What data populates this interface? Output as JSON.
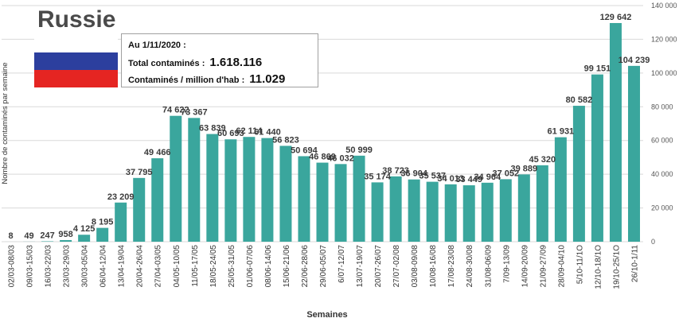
{
  "title": "Russie",
  "flag_colors": [
    "#ffffff",
    "#2c3f9e",
    "#e52522"
  ],
  "info": {
    "date_label": "Au 1/11/2020 :",
    "total_label": "Total contaminés :",
    "total_value": "1.618.116",
    "per_million_label": "Contaminés / million d'hab :",
    "per_million_value": "11.029"
  },
  "chart_data": {
    "type": "bar",
    "color": "#3aa69d",
    "xlabel": "Semaines",
    "ylabel": "Nombre de contaminés par semaine",
    "ylim": [
      0,
      140000
    ],
    "yticks": [
      0,
      20000,
      40000,
      60000,
      80000,
      100000,
      120000,
      140000
    ],
    "ytick_labels": [
      "0",
      "20 000",
      "40 000",
      "60 000",
      "80 000",
      "100 000",
      "120 000",
      "140 000"
    ],
    "grid": true,
    "categories": [
      "02/03-08/03",
      "09/03-15/03",
      "16/03-22/03",
      "23/03-29/03",
      "30/03-05/04",
      "06/04-12/04",
      "13/04-19/04",
      "20/04-26/04",
      "27/04-03/05",
      "04/05-10/05",
      "11/05-17/05",
      "18/05-24/05",
      "25/05-31/05",
      "01/06-07/06",
      "08/06-14/06",
      "15/06-21/06",
      "22/06-28/06",
      "29/06-05/07",
      "6/07-12/07",
      "13/07-19/07",
      "20/07-26/07",
      "27/07-02/08",
      "03/08-09/08",
      "10/08-16/08",
      "17/08-23/08",
      "24/08-30/08",
      "31/08-06/09",
      "7/09-13/09",
      "14/09-20/09",
      "21/09-27/09",
      "28/09-04/10",
      "5/10-11/1O",
      "12/10-18/1O",
      "19/10-25/1O",
      "26/10-1/11"
    ],
    "values": [
      8,
      49,
      247,
      958,
      4125,
      8195,
      23209,
      37795,
      49466,
      74622,
      73367,
      63839,
      60693,
      62114,
      61440,
      56823,
      50694,
      46869,
      46032,
      50999,
      35174,
      38723,
      36904,
      35537,
      34013,
      33449,
      34964,
      37052,
      39889,
      45320,
      61931,
      80582,
      99151,
      129642,
      104239
    ],
    "labels": [
      "8",
      "49",
      "247",
      "958",
      "4 125",
      "8 195",
      "23 209",
      "37 795",
      "49 466",
      "74 622",
      "73 367",
      "63 839",
      "60 693",
      "62 114",
      "61 440",
      "56 823",
      "50 694",
      "46 869",
      "46 032",
      "50 999",
      "35 174",
      "38 723",
      "36 904",
      "35 537",
      "34 013",
      "33 449",
      "34 964",
      "37 052",
      "39 889",
      "45 320",
      "61 931",
      "80 582",
      "99 151",
      "129 642",
      "104 239"
    ]
  }
}
